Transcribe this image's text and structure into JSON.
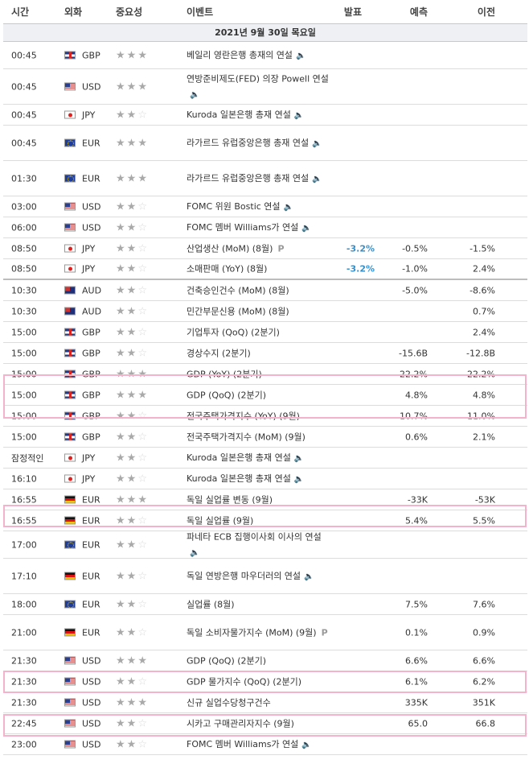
{
  "header": {
    "time": "시간",
    "currency": "외화",
    "importance": "중요성",
    "event": "이벤트",
    "actual": "발표",
    "forecast": "예측",
    "previous": "이전"
  },
  "date_label": "2021년 9월 30일 목요일",
  "icons": {
    "speech": "speaker-icon",
    "preliminary": "p-mark-icon",
    "star": "star-icon"
  },
  "colors": {
    "actual": "#3a8fc8",
    "highlight": "#f4b3cb",
    "star_on": "#a9a9a9",
    "star_off": "#d8d8d8"
  },
  "rows": [
    {
      "time": "00:45",
      "flag": "gb",
      "cur": "GBP",
      "imp": 3,
      "event": "베일리 영란은행 총재의 연설",
      "speech": true,
      "actual": "",
      "forecast": "",
      "previous": ""
    },
    {
      "time": "00:45",
      "flag": "us",
      "cur": "USD",
      "imp": 3,
      "event": "연방준비제도(FED) 의장 Powell 연설",
      "speech": true,
      "actual": "",
      "forecast": "",
      "previous": ""
    },
    {
      "time": "00:45",
      "flag": "jp",
      "cur": "JPY",
      "imp": 2,
      "event": "Kuroda 일본은행 총재 연설",
      "speech": true,
      "actual": "",
      "forecast": "",
      "previous": ""
    },
    {
      "time": "00:45",
      "flag": "eu",
      "cur": "EUR",
      "imp": 3,
      "event": "라가르드 유럽중앙은행 총재 연설",
      "speech": true,
      "actual": "",
      "forecast": "",
      "previous": ""
    },
    {
      "time": "01:30",
      "flag": "eu",
      "cur": "EUR",
      "imp": 3,
      "event": "라가르드 유럽중앙은행 총재 연설",
      "speech": true,
      "actual": "",
      "forecast": "",
      "previous": ""
    },
    {
      "time": "03:00",
      "flag": "us",
      "cur": "USD",
      "imp": 2,
      "event": "FOMC 위원 Bostic 연설",
      "speech": true,
      "actual": "",
      "forecast": "",
      "previous": ""
    },
    {
      "time": "06:00",
      "flag": "us",
      "cur": "USD",
      "imp": 2,
      "event": "FOMC 멤버 Williams가 연설",
      "speech": true,
      "actual": "",
      "forecast": "",
      "previous": ""
    },
    {
      "time": "08:50",
      "flag": "jp",
      "cur": "JPY",
      "imp": 2,
      "event": "산업생산 (MoM) (8월)",
      "pmark": true,
      "actual": "-3.2%",
      "forecast": "-0.5%",
      "previous": "-1.5%"
    },
    {
      "time": "08:50",
      "flag": "jp",
      "cur": "JPY",
      "imp": 2,
      "event": "소매판매 (YoY) (8월)",
      "actual": "-3.2%",
      "forecast": "-1.0%",
      "previous": "2.4%"
    },
    {
      "time": "10:30",
      "flag": "au",
      "cur": "AUD",
      "imp": 2,
      "event": "건축승인건수 (MoM) (8월)",
      "actual": "",
      "forecast": "-5.0%",
      "previous": "-8.6%"
    },
    {
      "time": "10:30",
      "flag": "au",
      "cur": "AUD",
      "imp": 2,
      "event": "민간부문신용 (MoM) (8월)",
      "actual": "",
      "forecast": "",
      "previous": "0.7%"
    },
    {
      "time": "15:00",
      "flag": "gb",
      "cur": "GBP",
      "imp": 2,
      "event": "기업투자 (QoQ) (2분기)",
      "actual": "",
      "forecast": "",
      "previous": "2.4%"
    },
    {
      "time": "15:00",
      "flag": "gb",
      "cur": "GBP",
      "imp": 2,
      "event": "경상수지 (2분기)",
      "actual": "",
      "forecast": "-15.6B",
      "previous": "-12.8B"
    },
    {
      "time": "15:00",
      "flag": "gb",
      "cur": "GBP",
      "imp": 3,
      "event": "GDP (YoY) (2분기)",
      "actual": "",
      "forecast": "22.2%",
      "previous": "22.2%"
    },
    {
      "time": "15:00",
      "flag": "gb",
      "cur": "GBP",
      "imp": 3,
      "event": "GDP (QoQ) (2분기)",
      "actual": "",
      "forecast": "4.8%",
      "previous": "4.8%"
    },
    {
      "time": "15:00",
      "flag": "gb",
      "cur": "GBP",
      "imp": 2,
      "event": "전국주택가격지수 (YoY) (9월)",
      "actual": "",
      "forecast": "10.7%",
      "previous": "11.0%"
    },
    {
      "time": "15:00",
      "flag": "gb",
      "cur": "GBP",
      "imp": 2,
      "event": "전국주택가격지수 (MoM) (9월)",
      "actual": "",
      "forecast": "0.6%",
      "previous": "2.1%"
    },
    {
      "time": "잠정적인",
      "flag": "jp",
      "cur": "JPY",
      "imp": 2,
      "event": "Kuroda 일본은행 총재 연설",
      "speech": true,
      "actual": "",
      "forecast": "",
      "previous": ""
    },
    {
      "time": "16:10",
      "flag": "jp",
      "cur": "JPY",
      "imp": 2,
      "event": "Kuroda 일본은행 총재 연설",
      "speech": true,
      "actual": "",
      "forecast": "",
      "previous": ""
    },
    {
      "time": "16:55",
      "flag": "de",
      "cur": "EUR",
      "imp": 3,
      "event": "독일 실업률 변동 (9월)",
      "actual": "",
      "forecast": "-33K",
      "previous": "-53K"
    },
    {
      "time": "16:55",
      "flag": "de",
      "cur": "EUR",
      "imp": 2,
      "event": "독일 실업률 (9월)",
      "actual": "",
      "forecast": "5.4%",
      "previous": "5.5%"
    },
    {
      "time": "17:00",
      "flag": "eu",
      "cur": "EUR",
      "imp": 2,
      "event": "파네타 ECB 집행이사회 이사의 연설",
      "speech": true,
      "actual": "",
      "forecast": "",
      "previous": ""
    },
    {
      "time": "17:10",
      "flag": "de",
      "cur": "EUR",
      "imp": 2,
      "event": "독일 연방은행 마우더러의 연설",
      "speech": true,
      "actual": "",
      "forecast": "",
      "previous": ""
    },
    {
      "time": "18:00",
      "flag": "eu",
      "cur": "EUR",
      "imp": 2,
      "event": "실업률 (8월)",
      "actual": "",
      "forecast": "7.5%",
      "previous": "7.6%"
    },
    {
      "time": "21:00",
      "flag": "de",
      "cur": "EUR",
      "imp": 2,
      "event": "독일 소비자물가지수 (MoM) (9월)",
      "pmark": true,
      "actual": "",
      "forecast": "0.1%",
      "previous": "0.9%"
    },
    {
      "time": "21:30",
      "flag": "us",
      "cur": "USD",
      "imp": 3,
      "event": "GDP (QoQ) (2분기)",
      "actual": "",
      "forecast": "6.6%",
      "previous": "6.6%"
    },
    {
      "time": "21:30",
      "flag": "us",
      "cur": "USD",
      "imp": 2,
      "event": "GDP 물가지수 (QoQ) (2분기)",
      "actual": "",
      "forecast": "6.1%",
      "previous": "6.2%"
    },
    {
      "time": "21:30",
      "flag": "us",
      "cur": "USD",
      "imp": 3,
      "event": "신규 실업수당청구건수",
      "actual": "",
      "forecast": "335K",
      "previous": "351K"
    },
    {
      "time": "22:45",
      "flag": "us",
      "cur": "USD",
      "imp": 2,
      "event": "시카고 구매관리자지수 (9월)",
      "actual": "",
      "forecast": "65.0",
      "previous": "66.8"
    },
    {
      "time": "23:00",
      "flag": "us",
      "cur": "USD",
      "imp": 2,
      "event": "FOMC 멤버 Williams가 연설",
      "speech": true,
      "actual": "",
      "forecast": "",
      "previous": ""
    }
  ]
}
